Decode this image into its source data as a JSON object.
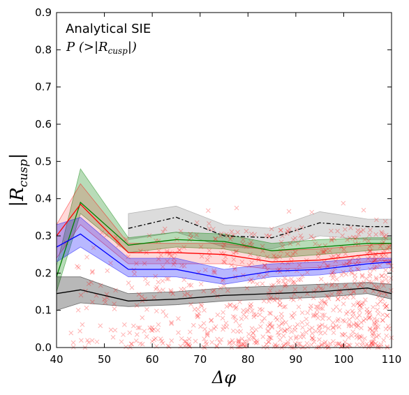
{
  "chart_data": {
    "type": "line",
    "x_range": [
      40,
      110
    ],
    "y_range": [
      0.0,
      0.9
    ],
    "xticks": [
      40,
      50,
      60,
      70,
      80,
      90,
      100,
      110
    ],
    "yticks": [
      0.0,
      0.1,
      0.2,
      0.3,
      0.4,
      0.5,
      0.6,
      0.7,
      0.8,
      0.9
    ],
    "xtick_labels": [
      "40",
      "50",
      "60",
      "70",
      "80",
      "90",
      "100",
      "110"
    ],
    "ytick_labels": [
      "0.0",
      "0.1",
      "0.2",
      "0.3",
      "0.4",
      "0.5",
      "0.6",
      "0.7",
      "0.8",
      "0.9"
    ],
    "xlabel": "Δφ",
    "ylabel_main": "|R",
    "ylabel_sub": "cusp",
    "ylabel_end": "|",
    "annotation_title": "Analytical SIE",
    "annotation_prob_main": "P (>|R",
    "annotation_prob_sub": "cusp",
    "annotation_prob_end": "|)",
    "grid": false,
    "series": [
      {
        "color": "#808080",
        "style": "dashdot",
        "x": [
          55,
          65,
          75,
          85,
          95,
          105,
          110
        ],
        "y": [
          0.32,
          0.35,
          0.3,
          0.295,
          0.335,
          0.325,
          0.325
        ],
        "band_low": [
          0.29,
          0.31,
          0.27,
          0.265,
          0.3,
          0.29,
          0.29
        ],
        "band_high": [
          0.36,
          0.38,
          0.33,
          0.32,
          0.365,
          0.345,
          0.345
        ],
        "line_color": "#000000"
      },
      {
        "color": "#008000",
        "x": [
          40,
          45,
          55,
          65,
          75,
          85,
          95,
          105,
          110
        ],
        "y": [
          0.19,
          0.39,
          0.275,
          0.29,
          0.285,
          0.26,
          0.27,
          0.28,
          0.28
        ],
        "band_low": [
          0.15,
          0.36,
          0.255,
          0.27,
          0.265,
          0.24,
          0.25,
          0.26,
          0.265
        ],
        "band_high": [
          0.22,
          0.48,
          0.295,
          0.31,
          0.305,
          0.28,
          0.29,
          0.295,
          0.295
        ]
      },
      {
        "color": "#ff0000",
        "x": [
          40,
          45,
          55,
          65,
          75,
          85,
          95,
          105,
          110
        ],
        "y": [
          0.3,
          0.385,
          0.255,
          0.255,
          0.25,
          0.23,
          0.235,
          0.25,
          0.255
        ],
        "band_low": [
          0.24,
          0.33,
          0.225,
          0.225,
          0.225,
          0.21,
          0.215,
          0.23,
          0.235
        ],
        "band_high": [
          0.33,
          0.44,
          0.28,
          0.28,
          0.28,
          0.26,
          0.265,
          0.275,
          0.28
        ]
      },
      {
        "color": "#0000ff",
        "x": [
          40,
          45,
          55,
          65,
          75,
          85,
          95,
          105,
          110
        ],
        "y": [
          0.27,
          0.305,
          0.21,
          0.21,
          0.185,
          0.205,
          0.21,
          0.225,
          0.23
        ],
        "band_low": [
          0.23,
          0.27,
          0.19,
          0.19,
          0.17,
          0.19,
          0.195,
          0.21,
          0.215
        ],
        "band_high": [
          0.33,
          0.35,
          0.24,
          0.24,
          0.21,
          0.225,
          0.23,
          0.24,
          0.24
        ]
      },
      {
        "color": "#000000",
        "x": [
          40,
          45,
          55,
          65,
          75,
          85,
          95,
          105,
          110
        ],
        "y": [
          0.145,
          0.155,
          0.125,
          0.13,
          0.14,
          0.145,
          0.15,
          0.16,
          0.145
        ],
        "band_low": [
          0.1,
          0.12,
          0.11,
          0.115,
          0.125,
          0.13,
          0.135,
          0.145,
          0.13
        ],
        "band_high": [
          0.19,
          0.19,
          0.145,
          0.15,
          0.16,
          0.165,
          0.17,
          0.175,
          0.17
        ]
      }
    ],
    "scatter_color": "#ff0000"
  }
}
